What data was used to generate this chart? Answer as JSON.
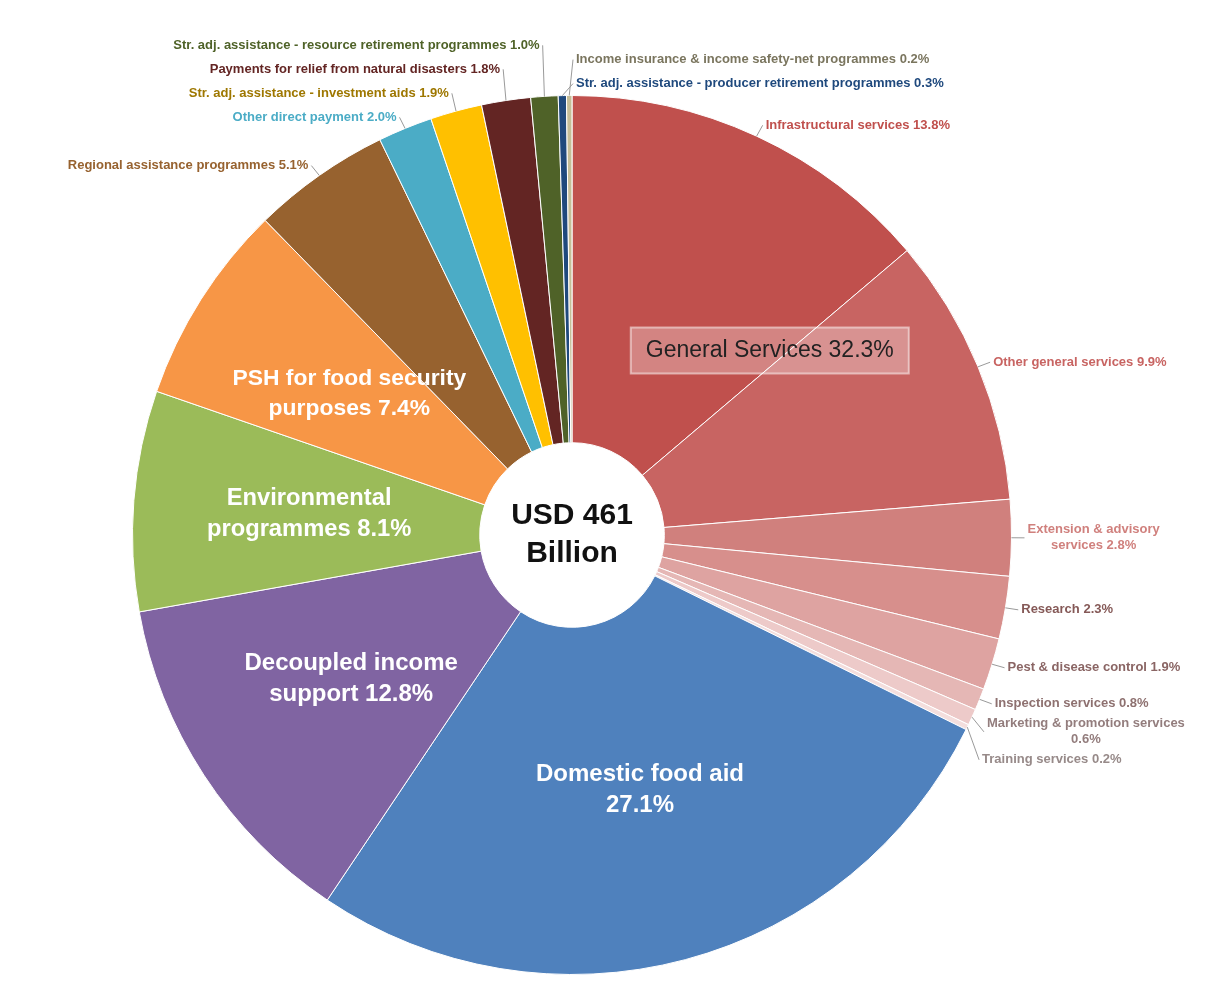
{
  "chart_data": {
    "type": "donut",
    "categories": [
      "Infrastructural services",
      "Other general services",
      "Extension & advisory services",
      "Research",
      "Pest & disease control",
      "Inspection services",
      "Marketing & promotion services",
      "Training services",
      "Domestic food aid",
      "Decoupled income support",
      "Environmental programmes",
      "PSH for food security purposes",
      "Regional assistance programmes",
      "Other direct payment",
      "Str. adj. assistance - investment aids",
      "Payments for relief from natural disasters",
      "Str. adj. assistance - resource retirement programmes",
      "Str. adj. assistance - producer retirement programmes",
      "Income insurance & income safety-net programmes"
    ],
    "values": [
      13.8,
      9.9,
      2.8,
      2.3,
      1.9,
      0.8,
      0.6,
      0.2,
      27.1,
      12.8,
      8.1,
      7.4,
      5.1,
      2.0,
      1.9,
      1.8,
      1.0,
      0.3,
      0.2
    ],
    "value_labels": [
      "13.8%",
      "9.9%",
      "2.8%",
      "2.3%",
      "1.9%",
      "0.8%",
      "0.6%",
      "0.2%",
      "27.1%",
      "12.8%",
      "8.1%",
      "7.4%",
      "5.1%",
      "2.0%",
      "1.9%",
      "1.8%",
      "1.0%",
      "0.3%",
      "0.2%"
    ],
    "colors": [
      "#c0504d",
      "#c86462",
      "#d0807d",
      "#d78f8c",
      "#dea3a1",
      "#e5b7b5",
      "#edcac9",
      "#f4dedd",
      "#4f81bd",
      "#8064a2",
      "#9bbb59",
      "#f79646",
      "#97622f",
      "#4bacc6",
      "#ffc000",
      "#632523",
      "#4f6228",
      "#1f497d",
      "#c4bd97"
    ],
    "annotations": [
      "USD 461 Billion",
      "General Services 32.3%"
    ],
    "legend": false
  }
}
